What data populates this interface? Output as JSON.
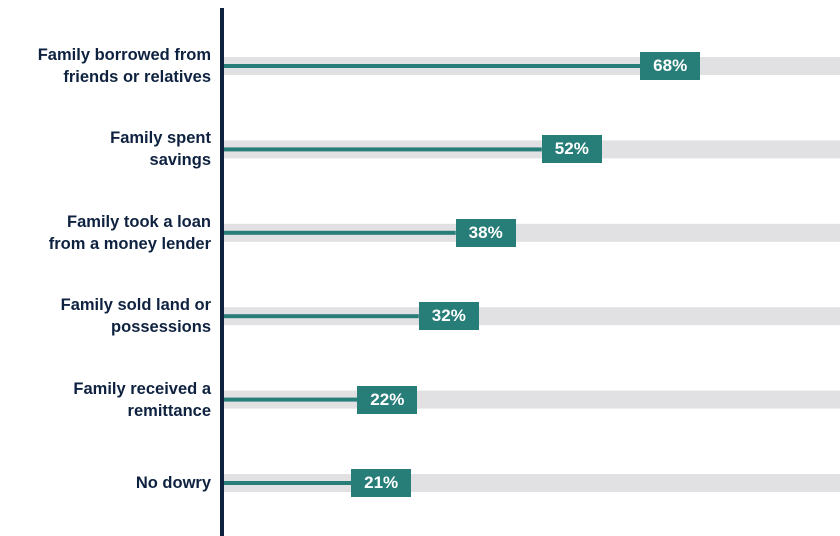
{
  "chart_data": {
    "type": "bar",
    "categories": [
      "Family borrowed from\nfriends or relatives",
      "Family spent\nsavings",
      "Family took a loan\nfrom a money lender",
      "Family sold land or\npossessions",
      "Family received a\nremittance",
      "No dowry"
    ],
    "values": [
      68,
      52,
      38,
      32,
      22,
      21
    ],
    "value_labels": [
      "68%",
      "52%",
      "38%",
      "32%",
      "22%",
      "21%"
    ],
    "xlim": [
      0,
      100
    ],
    "color": "#277d78",
    "track_color": "#e1e0e2",
    "axis_color": "#0e2240"
  }
}
